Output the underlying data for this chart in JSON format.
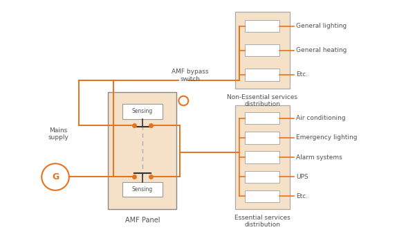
{
  "bg_color": "#ffffff",
  "orange": "#E8721C",
  "panel_fill": "#F5E0C8",
  "panel_edge": "#B0A090",
  "text_color": "#505050",
  "labels_non_essential": [
    "General lighting",
    "General heating",
    "Etc."
  ],
  "labels_essential": [
    "Air conditioning",
    "Emergency lighting",
    "Alarm systems",
    "UPS",
    "Etc."
  ],
  "title_non_essential": "Non-Essential services\ndistribution",
  "title_essential": "Essential services\ndistribution",
  "amf_label": "AMF Panel",
  "bypass_label": "AMF bypass\nswitch",
  "mains_label": "Mains\nsupply",
  "generator_label": "G"
}
